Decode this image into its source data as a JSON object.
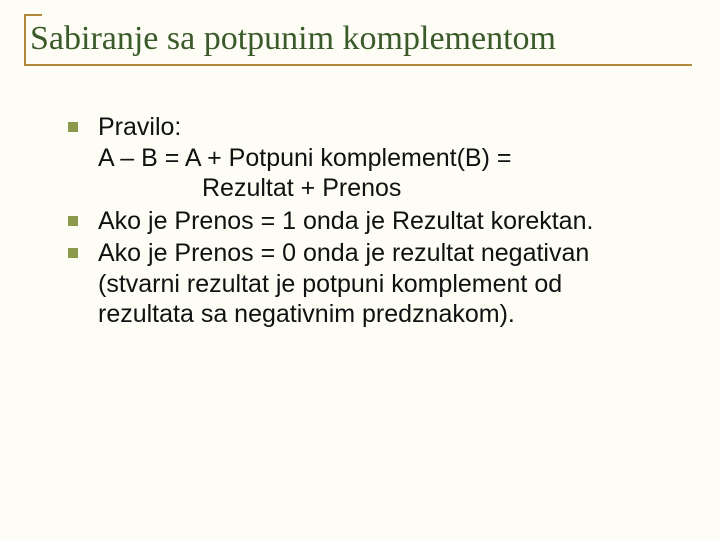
{
  "title_fontsize": 34,
  "body_fontsize": 25,
  "slide": {
    "title": "Sabiranje sa potpunim komplementom",
    "bullets": [
      {
        "line1": "Pravilo:",
        "line2": "A – B = A + Potpuni komplement(B) =",
        "line3": "Rezultat + Prenos"
      },
      {
        "line1": "Ako je Prenos = 1 onda je Rezultat korektan."
      },
      {
        "line1": "Ako je Prenos = 0 onda je rezultat negativan (stvarni rezultat je potpuni komplement od rezultata sa negativnim predznakom)."
      }
    ]
  },
  "colors": {
    "background": "#fdfdf5",
    "title_text": "#3a5a2a",
    "rule": "#b08a3a",
    "bullet": "#8a9a4a",
    "body_text": "#111111"
  }
}
